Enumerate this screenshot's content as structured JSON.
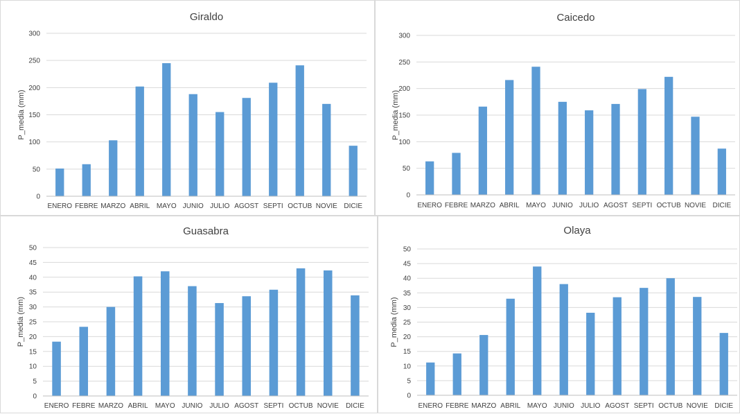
{
  "chart_data": [
    {
      "type": "bar",
      "title": "Giraldo",
      "ylabel": "P_media (mm)",
      "xlabel": "",
      "ylim": [
        0,
        300
      ],
      "yticks": [
        0,
        50,
        100,
        150,
        200,
        250,
        300
      ],
      "grid": true,
      "bar_color": "#5b9bd5",
      "categories": [
        "ENERO",
        "FEBRE",
        "MARZO",
        "ABRIL",
        "MAYO",
        "JUNIO",
        "JULIO",
        "AGOST",
        "SEPTI",
        "OCTUB",
        "NOVIE",
        "DICIE"
      ],
      "values": [
        51,
        59,
        103,
        202,
        245,
        188,
        155,
        181,
        209,
        241,
        170,
        93
      ]
    },
    {
      "type": "bar",
      "title": "Caicedo",
      "ylabel": "P_media (mm)",
      "xlabel": "",
      "ylim": [
        0,
        300
      ],
      "yticks": [
        0,
        50,
        100,
        150,
        200,
        250,
        300
      ],
      "grid": true,
      "bar_color": "#5b9bd5",
      "categories": [
        "ENERO",
        "FEBRE",
        "MARZO",
        "ABRIL",
        "MAYO",
        "JUNIO",
        "JULIO",
        "AGOST",
        "SEPTI",
        "OCTUB",
        "NOVIE",
        "DICIE"
      ],
      "values": [
        63,
        79,
        166,
        216,
        241,
        175,
        159,
        171,
        199,
        222,
        147,
        87
      ]
    },
    {
      "type": "bar",
      "title": "Guasabra",
      "ylabel": "P_media (mm)",
      "xlabel": "",
      "ylim": [
        0,
        50
      ],
      "yticks": [
        0,
        5,
        10,
        15,
        20,
        25,
        30,
        35,
        40,
        45,
        50
      ],
      "grid": true,
      "bar_color": "#5b9bd5",
      "categories": [
        "ENERO",
        "FEBRE",
        "MARZO",
        "ABRIL",
        "MAYO",
        "JUNIO",
        "JULIO",
        "AGOST",
        "SEPTI",
        "OCTUB",
        "NOVIE",
        "DICIE"
      ],
      "values": [
        18.3,
        23.3,
        30,
        40.3,
        42,
        37,
        31.3,
        33.6,
        35.8,
        43,
        42.3,
        33.9
      ]
    },
    {
      "type": "bar",
      "title": "Olaya",
      "ylabel": "P_media (mm)",
      "xlabel": "",
      "ylim": [
        0,
        50
      ],
      "yticks": [
        0,
        5,
        10,
        15,
        20,
        25,
        30,
        35,
        40,
        45,
        50
      ],
      "grid": true,
      "bar_color": "#5b9bd5",
      "categories": [
        "ENERO",
        "FEBRE",
        "MARZO",
        "ABRIL",
        "MAYO",
        "JUNIO",
        "JULIO",
        "AGOST",
        "SEPTI",
        "OCTUB",
        "NOVIE",
        "DICIE"
      ],
      "values": [
        11.2,
        14.3,
        20.6,
        33,
        44,
        38,
        28.2,
        33.5,
        36.7,
        40,
        33.6,
        21.3
      ]
    }
  ]
}
